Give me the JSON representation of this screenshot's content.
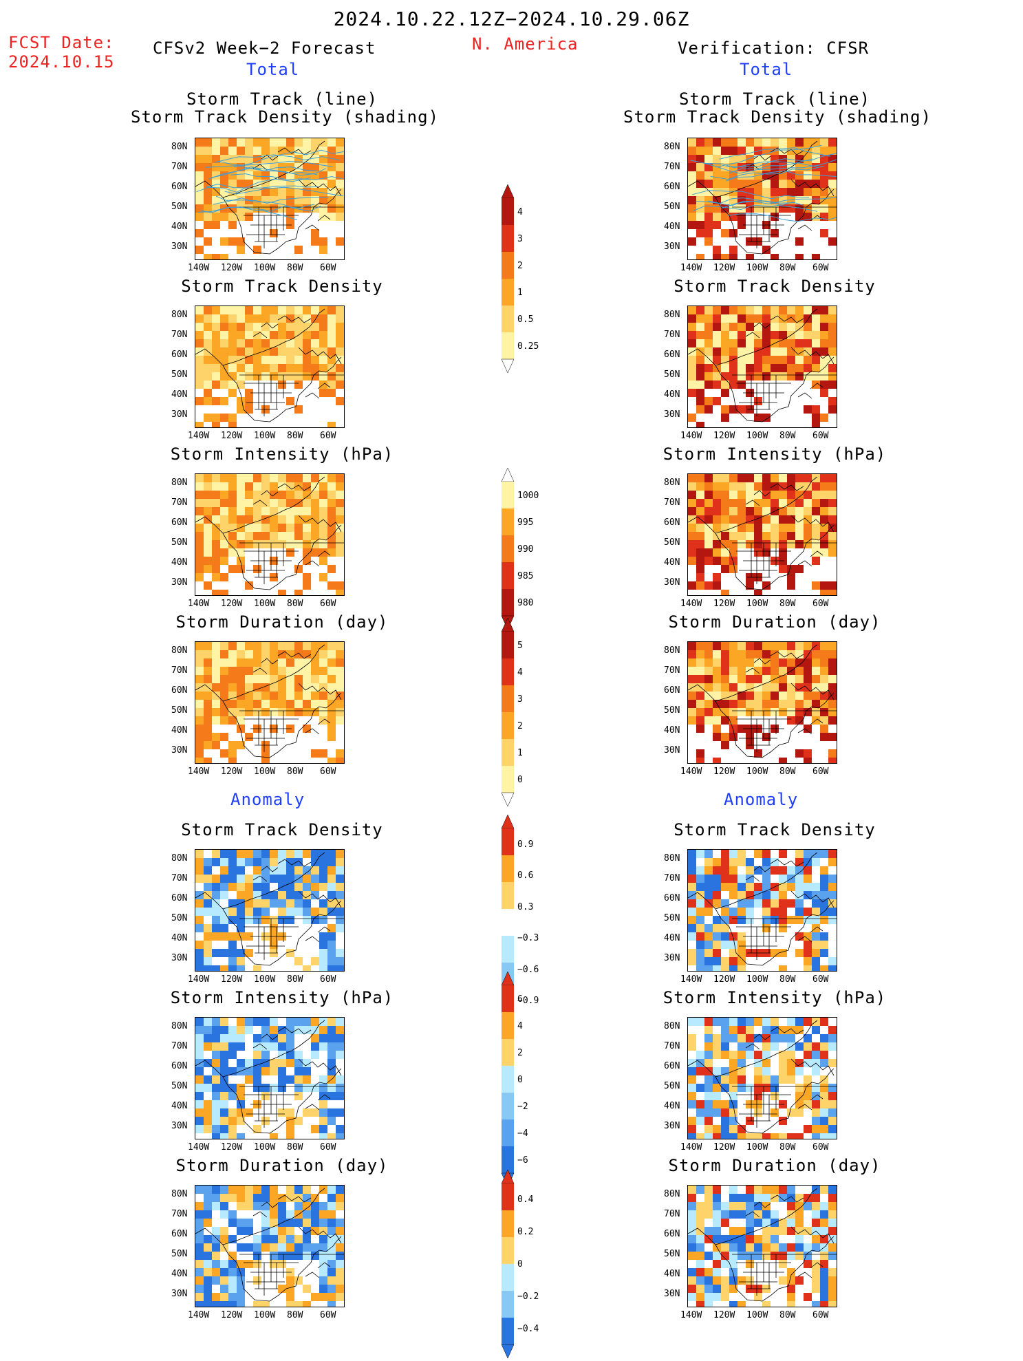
{
  "header": {
    "period": "2024.10.22.12Z−2024.10.29.06Z",
    "fcst_label": "FCST Date:",
    "fcst_date": "2024.10.15",
    "left_title": "CFSv2 Week−2 Forecast",
    "region": "N. America",
    "right_title": "Verification: CFSR"
  },
  "sections": {
    "total": "Total",
    "anomaly": "Anomaly"
  },
  "panel_titles": {
    "track_line": "Storm Track (line)",
    "track_shading": "Storm Track Density (shading)",
    "density": "Storm Track Density",
    "intensity": "Storm Intensity (hPa)",
    "duration": "Storm Duration (day)"
  },
  "axes": {
    "lat_ticks": [
      "80N",
      "70N",
      "60N",
      "50N",
      "40N",
      "30N"
    ],
    "lon_ticks": [
      "140W",
      "120W",
      "100W",
      "80W",
      "60W"
    ]
  },
  "colorbars": {
    "density_total": [
      "4",
      "3",
      "2",
      "1",
      "0.5",
      "0.25"
    ],
    "intensity_total": [
      "1000",
      "995",
      "990",
      "985",
      "980"
    ],
    "duration_total": [
      "5",
      "4",
      "3",
      "2",
      "1",
      "0"
    ],
    "density_anom": [
      "0.9",
      "0.6",
      "0.3",
      "−0.3",
      "−0.6",
      "−0.9"
    ],
    "intensity_anom": [
      "6",
      "4",
      "2",
      "0",
      "−2",
      "−4",
      "−6"
    ],
    "duration_anom": [
      "0.4",
      "0.2",
      "0",
      "−0.2",
      "−0.4"
    ]
  },
  "colors": {
    "pale_yellow": "#fff3a6",
    "light_orange": "#fdd36a",
    "orange": "#fba624",
    "dark_orange": "#f57a19",
    "red": "#e0321a",
    "dark_red": "#b4170f",
    "light_blue": "#b7eaff",
    "mid_blue": "#89c8f5",
    "blue": "#5aa2ee",
    "dark_blue": "#2a74df",
    "track_line": "#3a9fd8"
  }
}
